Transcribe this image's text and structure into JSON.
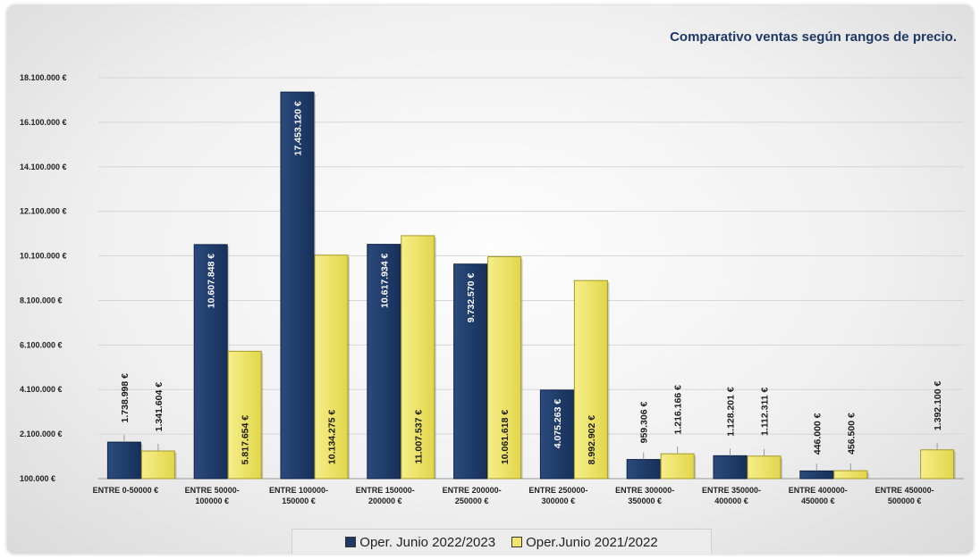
{
  "chart_data": {
    "type": "bar",
    "title": "Comparativo ventas según rangos de precio.",
    "categories": [
      [
        "ENTRE 0-50000 €"
      ],
      [
        "ENTRE 50000-",
        "100000 €"
      ],
      [
        "ENTRE 100000-",
        "150000 €"
      ],
      [
        "ENTRE 150000-",
        "200000 €"
      ],
      [
        "ENTRE 200000-",
        "250000 €"
      ],
      [
        "ENTRE 250000-",
        "300000 €"
      ],
      [
        "ENTRE 300000-",
        "350000 €"
      ],
      [
        "ENTRE 350000-",
        "400000 €"
      ],
      [
        "ENTRE 400000-",
        "450000 €"
      ],
      [
        "ENTRE 450000-",
        "500000 €"
      ]
    ],
    "series": [
      {
        "name": "Oper. Junio 2022/2023",
        "color": "#1f3864",
        "values": [
          1738998,
          10607848,
          17453120,
          10617934,
          9732570,
          4075263,
          959306,
          1128201,
          446000,
          null
        ],
        "labels": [
          "1.738.998 €",
          "10.607.848 €",
          "17.453.120 €",
          "10.617.934 €",
          "9.732.570 €",
          "4.075.263 €",
          "959.306 €",
          "1.128.201 €",
          "446.000 €",
          ""
        ]
      },
      {
        "name": "Oper.Junio 2021/2022",
        "color": "#f0e66e",
        "values": [
          1341604,
          5817654,
          10134275,
          11007537,
          10061618,
          8992902,
          1216166,
          1112311,
          456500,
          1392100
        ],
        "labels": [
          "1.341.604 €",
          "5.817.654 €",
          "10.134.275 €",
          "11.007.537 €",
          "10.061.618 €",
          "8.992.902 €",
          "1.216.166 €",
          "1.112.311 €",
          "456.500 €",
          "1.392.100 €"
        ]
      }
    ],
    "y_ticks": [
      100000,
      2100000,
      4100000,
      6100000,
      8100000,
      10100000,
      12100000,
      14100000,
      16100000,
      18100000
    ],
    "y_tick_labels": [
      "100.000 €",
      "2.100.000 €",
      "4.100.000 €",
      "6.100.000 €",
      "8.100.000 €",
      "10.100.000 €",
      "12.100.000 €",
      "14.100.000 €",
      "16.100.000 €",
      "18.100.000 €"
    ],
    "ylim": [
      100000,
      18100000
    ],
    "grid": true,
    "legend_position": "bottom"
  }
}
